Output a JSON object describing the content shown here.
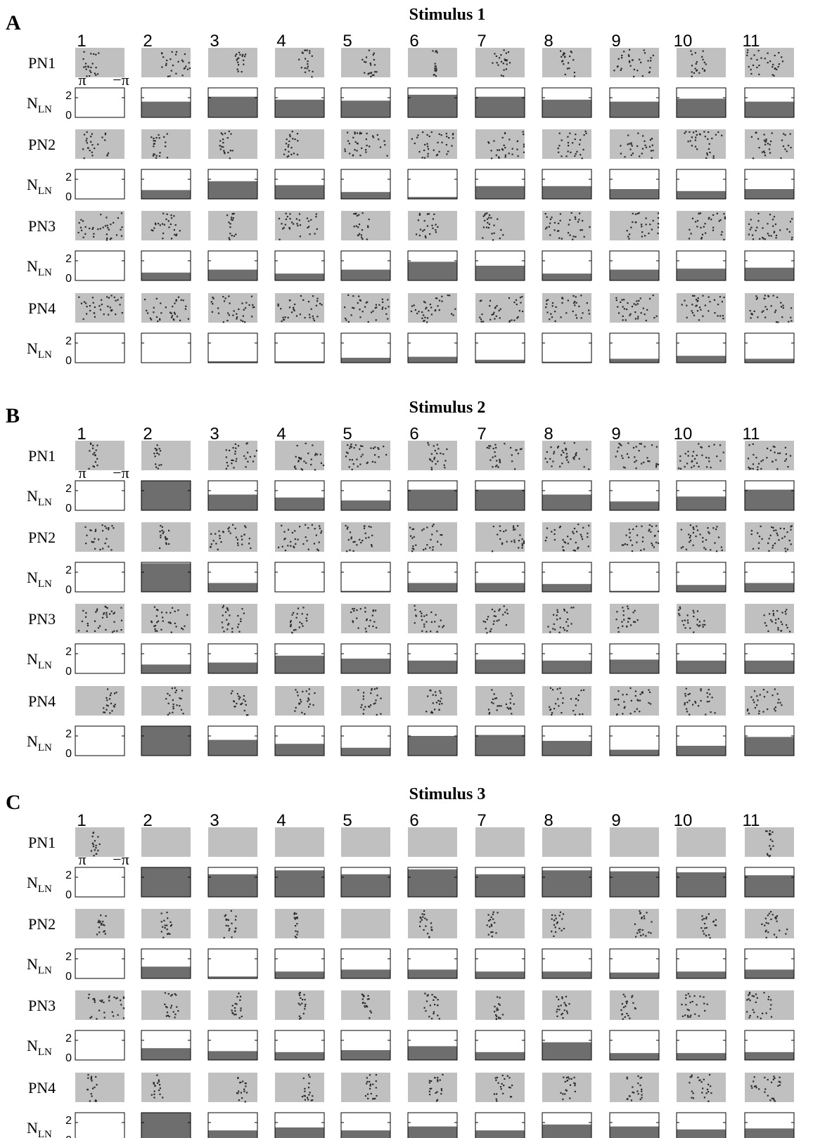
{
  "chart_data": {
    "type": "raster",
    "columns": [
      "1",
      "2",
      "3",
      "4",
      "5",
      "6",
      "7",
      "8",
      "9",
      "10",
      "11"
    ],
    "row_labels": [
      "PN1",
      "PN2",
      "PN3",
      "PN4"
    ],
    "nln_label_main": "N",
    "nln_label_sub": "LN",
    "nln_ticks": [
      "2",
      "0"
    ],
    "nln_ylim": [
      0,
      3
    ],
    "phase_label_left": "π",
    "phase_label_right": "−π",
    "colors": {
      "raster_bg": "#c0c0c0",
      "spike": "#2a2a2a",
      "nln_fill": "#6e6e6e",
      "frame": "#000000"
    },
    "panels": [
      {
        "letter": "A",
        "title": "Stimulus 1",
        "nln": [
          [
            0,
            1.6,
            2.1,
            1.8,
            1.7,
            2.3,
            2.1,
            1.8,
            1.6,
            1.9,
            1.6
          ],
          [
            0,
            0.9,
            1.8,
            1.4,
            0.7,
            0.2,
            1.3,
            1.3,
            1.0,
            0.8,
            1.0
          ],
          [
            0,
            0.8,
            1.1,
            0.7,
            1.1,
            1.9,
            1.5,
            0.7,
            1.1,
            1.2,
            1.3
          ],
          [
            0,
            0,
            0.15,
            0.15,
            0.5,
            0.6,
            0.3,
            0.1,
            0.4,
            0.7,
            0.4
          ]
        ],
        "spread": [
          [
            0.35,
            0.6,
            0.2,
            0.25,
            0.3,
            0.1,
            0.35,
            0.3,
            0.8,
            0.3,
            0.8
          ],
          [
            0.5,
            0.35,
            0.25,
            0.3,
            1.0,
            1.0,
            0.8,
            0.6,
            0.7,
            0.8,
            0.8
          ],
          [
            1.0,
            0.6,
            0.15,
            0.8,
            0.3,
            0.4,
            0.4,
            1.0,
            0.7,
            0.8,
            1.0
          ],
          [
            1.0,
            1.0,
            1.0,
            1.0,
            1.0,
            1.0,
            1.0,
            1.0,
            1.0,
            1.0,
            1.0
          ]
        ]
      },
      {
        "letter": "B",
        "title": "Stimulus 2",
        "nln": [
          [
            0,
            3.0,
            1.6,
            1.3,
            1.0,
            2.1,
            2.1,
            1.6,
            0.9,
            1.4,
            2.1
          ],
          [
            0,
            2.9,
            0.9,
            0,
            0.1,
            0.9,
            0.9,
            0.8,
            0.1,
            0.7,
            0.9
          ],
          [
            0,
            0.9,
            1.1,
            1.8,
            1.5,
            1.3,
            1.4,
            1.3,
            1.4,
            1.3,
            1.3
          ],
          [
            0,
            3.0,
            1.6,
            1.2,
            0.8,
            2.0,
            2.1,
            1.5,
            0.6,
            1.0,
            1.9
          ]
        ],
        "spread": [
          [
            0.15,
            0.1,
            0.7,
            0.6,
            1.0,
            0.4,
            0.7,
            1.0,
            0.9,
            0.9,
            0.9
          ],
          [
            0.6,
            0.2,
            0.9,
            1.0,
            0.6,
            0.7,
            0.7,
            1.0,
            0.9,
            1.0,
            1.0
          ],
          [
            1.0,
            0.8,
            0.5,
            0.4,
            0.5,
            0.6,
            0.5,
            0.5,
            0.4,
            0.6,
            0.6
          ],
          [
            0.25,
            0.35,
            0.3,
            0.4,
            0.5,
            0.35,
            0.5,
            0.7,
            0.8,
            0.7,
            0.7
          ]
        ]
      },
      {
        "letter": "C",
        "title": "Stimulus 3",
        "nln": [
          [
            0,
            3.0,
            2.3,
            2.7,
            2.3,
            2.8,
            2.3,
            2.7,
            2.6,
            2.5,
            2.2
          ],
          [
            0,
            1.2,
            0.2,
            0.7,
            0.9,
            0.9,
            0.7,
            0.7,
            0.6,
            0.7,
            0.9
          ],
          [
            0,
            1.2,
            0.9,
            0.8,
            1.0,
            1.4,
            0.8,
            1.8,
            0.7,
            0.7,
            0.8
          ],
          [
            0,
            3.0,
            1.2,
            1.5,
            1.2,
            1.6,
            1.2,
            1.8,
            1.6,
            1.3,
            1.4
          ]
        ],
        "spread": [
          [
            0.15,
            0,
            0,
            0,
            0,
            0,
            0,
            0,
            0,
            0,
            0.15
          ],
          [
            0.15,
            0.2,
            0.25,
            0.05,
            0,
            0.25,
            0.2,
            0.25,
            0.3,
            0.3,
            0.5
          ],
          [
            0.8,
            0.25,
            0.2,
            0.15,
            0.2,
            0.3,
            0.15,
            0.3,
            0.3,
            0.5,
            0.6
          ],
          [
            0.2,
            0.2,
            0.2,
            0.2,
            0.25,
            0.3,
            0.35,
            0.3,
            0.35,
            0.45,
            0.6
          ]
        ]
      }
    ]
  }
}
